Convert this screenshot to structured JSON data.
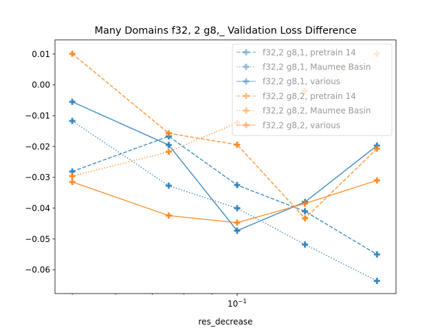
{
  "chart_data": {
    "type": "line",
    "title": "Many Domains f32, 2 g8,_ Validation Loss Difference",
    "xlabel": "res_decrease",
    "ylabel": "",
    "xscale": "log",
    "x": [
      0.05,
      0.075,
      0.1,
      0.133,
      0.18
    ],
    "xlim": [
      0.0465,
      0.195
    ],
    "ylim": [
      -0.0677,
      0.0146
    ],
    "x_ticks": [
      {
        "value": 0.1,
        "label": "10",
        "exponent": "−1"
      }
    ],
    "y_ticks": [
      {
        "value": 0.01,
        "label": "0.01"
      },
      {
        "value": 0.0,
        "label": "0.00"
      },
      {
        "value": -0.01,
        "label": "−0.01"
      },
      {
        "value": -0.02,
        "label": "−0.02"
      },
      {
        "value": -0.03,
        "label": "−0.03"
      },
      {
        "value": -0.04,
        "label": "−0.04"
      },
      {
        "value": -0.05,
        "label": "−0.05"
      },
      {
        "value": -0.06,
        "label": "−0.06"
      }
    ],
    "grid": false,
    "legend_position": "top-right",
    "series": [
      {
        "name": "f32,2 g8,1, pretrain 14",
        "color": "#1f77b4",
        "dash": "dashed",
        "marker": "plus",
        "values": [
          -0.0281,
          -0.0167,
          -0.0325,
          -0.041,
          -0.055
        ]
      },
      {
        "name": "f32,2 g8,1, Maumee Basin",
        "color": "#1f77b4",
        "dash": "dotted",
        "marker": "plus",
        "values": [
          -0.0117,
          -0.0327,
          -0.04,
          -0.0518,
          -0.0636
        ]
      },
      {
        "name": "f32,2 g8,1, various",
        "color": "#1f77b4",
        "dash": "solid",
        "marker": "plus",
        "values": [
          -0.0055,
          -0.0195,
          -0.0473,
          -0.038,
          -0.0197
        ]
      },
      {
        "name": "f32,2 g8,2, pretrain 14",
        "color": "#ff7f0e",
        "dash": "dashed",
        "marker": "plus",
        "values": [
          0.0101,
          -0.0157,
          -0.0194,
          -0.0433,
          -0.0207
        ]
      },
      {
        "name": "f32,2 g8,2, Maumee Basin",
        "color": "#ff7f0e",
        "dash": "dotted",
        "marker": "plus",
        "values": [
          -0.0296,
          -0.0217,
          -0.0123,
          -0.002,
          0.0101
        ]
      },
      {
        "name": "f32,2 g8,2, various",
        "color": "#ff7f0e",
        "dash": "solid",
        "marker": "plus",
        "values": [
          -0.0315,
          -0.0424,
          -0.0447,
          -0.0385,
          -0.031
        ]
      }
    ]
  }
}
